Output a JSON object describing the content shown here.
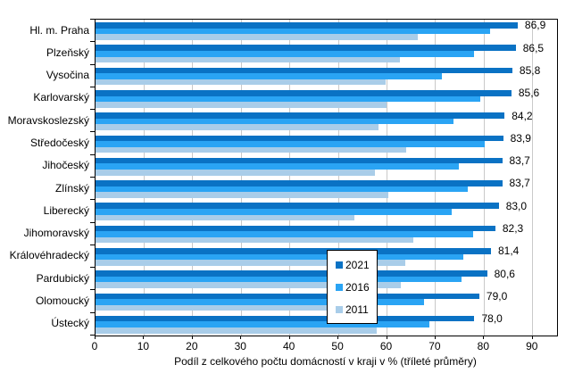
{
  "chart_data": {
    "type": "bar",
    "orientation": "horizontal",
    "title": "",
    "xlabel": "Podíl z celkového počtu domácností v kraji v % (tříleté průměry)",
    "ylabel": "",
    "xlim": [
      0,
      95
    ],
    "xticks": [
      0,
      10,
      20,
      30,
      40,
      50,
      60,
      70,
      80,
      90
    ],
    "grid": true,
    "categories": [
      "Hl. m. Praha",
      "Plzeňský",
      "Vysočina",
      "Karlovarský",
      "Moravskoslezský",
      "Středočeský",
      "Jihočeský",
      "Zlínský",
      "Liberecký",
      "Jihomoravský",
      "Královéhradecký",
      "Pardubický",
      "Olomoucký",
      "Ústecký"
    ],
    "series": [
      {
        "name": "2021",
        "color": "#0a72c4",
        "values": [
          86.9,
          86.5,
          85.8,
          85.6,
          84.2,
          83.9,
          83.7,
          83.7,
          83.0,
          82.3,
          81.4,
          80.6,
          79.0,
          78.0
        ],
        "data_labels": [
          "86,9",
          "86,5",
          "85,8",
          "85,6",
          "84,2",
          "83,9",
          "83,7",
          "83,7",
          "83,0",
          "82,3",
          "81,4",
          "80,6",
          "79,0",
          "78,0"
        ]
      },
      {
        "name": "2016",
        "color": "#2aa4f4",
        "values": [
          81.2,
          77.9,
          71.3,
          79.2,
          73.7,
          80.1,
          74.8,
          76.6,
          73.3,
          77.7,
          75.7,
          75.3,
          67.6,
          68.7
        ]
      },
      {
        "name": "2011",
        "color": "#a9cde9",
        "values": [
          66.3,
          62.7,
          59.7,
          59.9,
          58.3,
          63.9,
          57.5,
          60.3,
          53.3,
          65.4,
          63.8,
          62.8,
          57.7,
          57.9
        ]
      }
    ],
    "legend": {
      "entries": [
        "2021",
        "2016",
        "2011"
      ],
      "position": "inside-lower-middle"
    },
    "colors": {
      "gridline": "#c9c9c9",
      "axis": "#000000",
      "text": "#000000",
      "background": "#ffffff"
    }
  }
}
